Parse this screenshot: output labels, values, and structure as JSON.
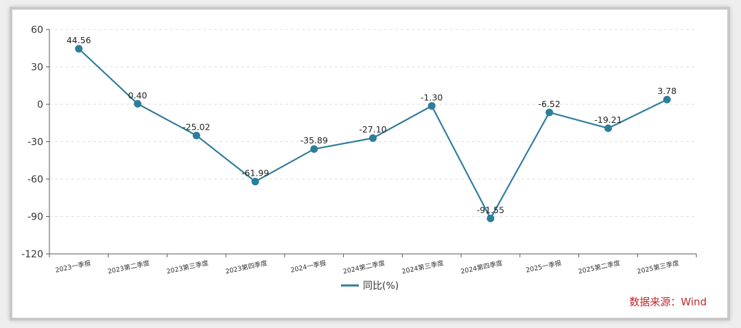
{
  "chart_data": {
    "type": "line",
    "categories": [
      "2023一季报",
      "2023第二季度",
      "2023第三季度",
      "2023第四季度",
      "2024一季报",
      "2024第二季度",
      "2024第三季度",
      "2024第四季度",
      "2025一季报",
      "2025第二季度",
      "2025第三季度"
    ],
    "series": [
      {
        "name": "同比(%)",
        "values": [
          44.56,
          0.4,
          -25.02,
          -61.99,
          -35.89,
          -27.1,
          -1.3,
          -91.55,
          -6.52,
          -19.21,
          3.78
        ],
        "labels": [
          "44.56",
          "0.40",
          "-25.02",
          "-61.99",
          "-35.89",
          "-27.10",
          "-1.30",
          "-91.55",
          "-6.52",
          "-19.21",
          "3.78"
        ],
        "color": "#2e7d9b"
      }
    ],
    "yticks": [
      "60",
      "30",
      "0",
      "-30",
      "-60",
      "-90",
      "-120"
    ],
    "ylim": [
      -120,
      60
    ],
    "grid": "horizontal dashed",
    "legend": "bottom-center"
  },
  "source_label": "数据来源：Wind"
}
